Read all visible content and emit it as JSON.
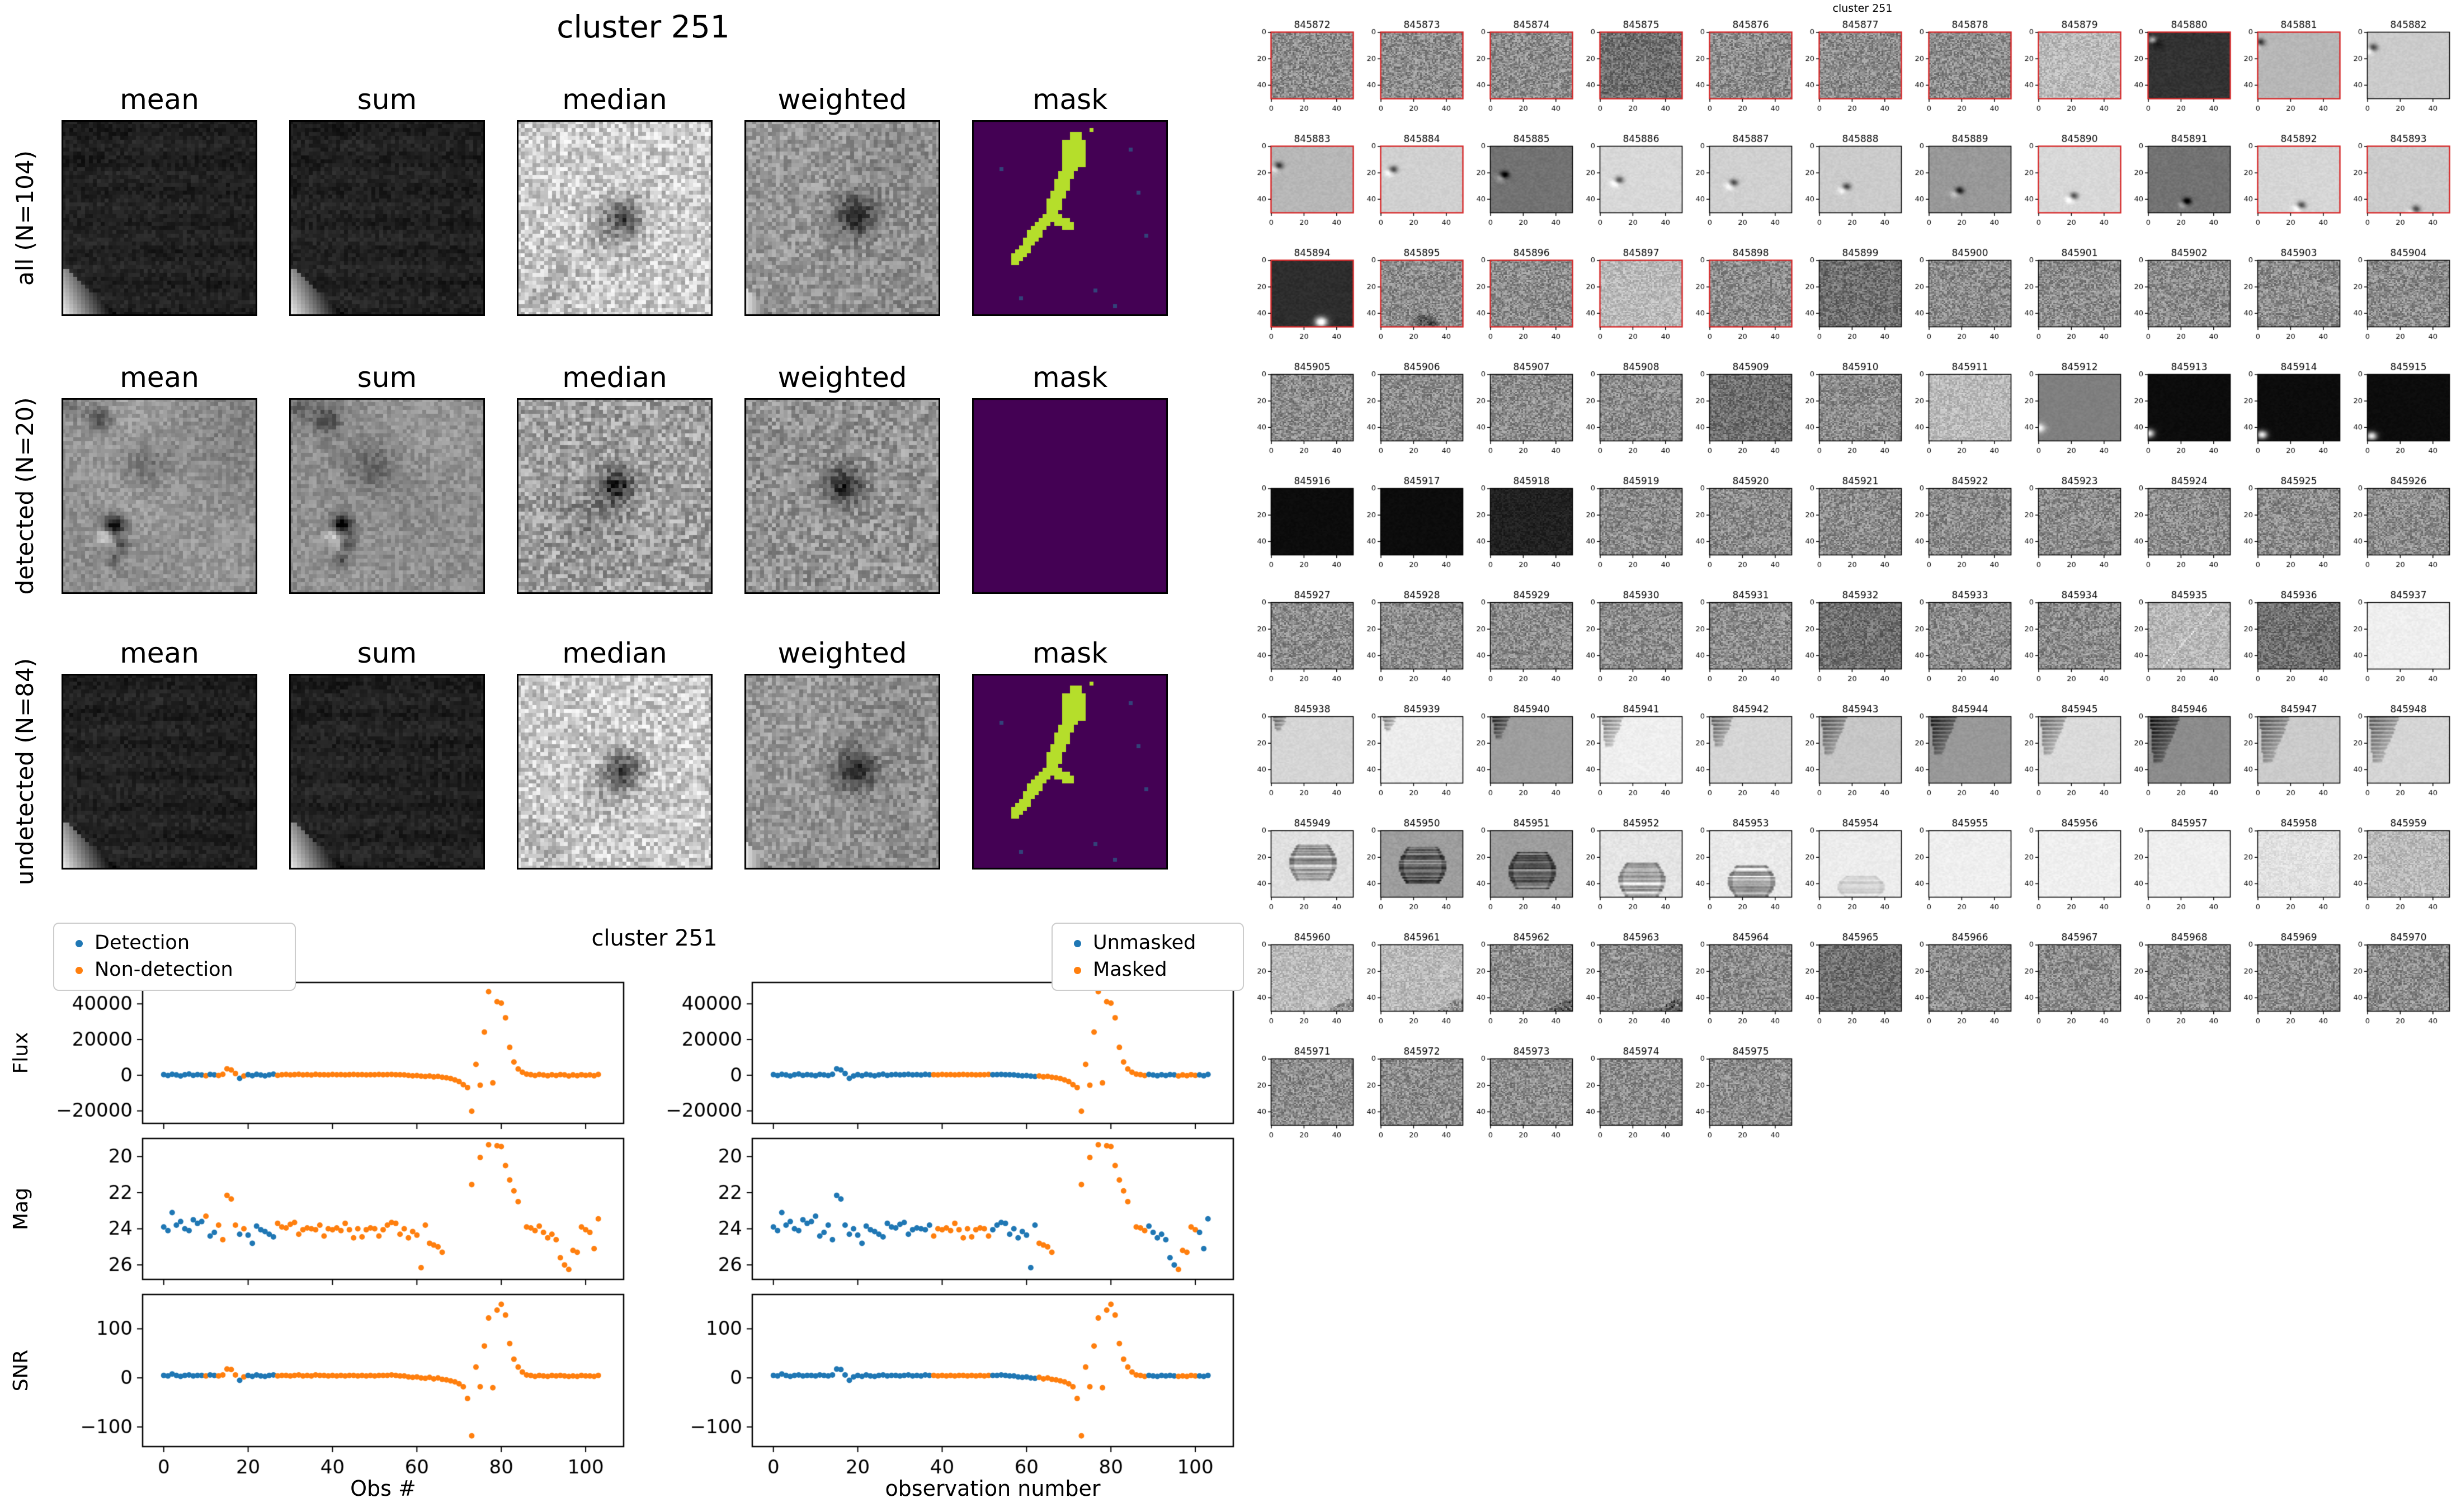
{
  "colors": {
    "detection": "#1f77b4",
    "non_detection": "#ff7f0e",
    "unmasked": "#1f77b4",
    "masked": "#ff7f0e",
    "detected_border": "#d62728",
    "tile_border": "#000000",
    "mask_background": "#440154",
    "mask_foreground": "#b5de2b",
    "mask_speck": "#33427a"
  },
  "left_figure": {
    "title": "cluster 251",
    "column_headers": [
      "mean",
      "sum",
      "median",
      "weighted",
      "mask"
    ],
    "rows": [
      {
        "label": "all (N=104)",
        "kind": "all"
      },
      {
        "label": "detected (N=20)",
        "kind": "detected"
      },
      {
        "label": "undetected (N=84)",
        "kind": "undetected"
      }
    ]
  },
  "scatter_figure": {
    "title": "cluster 251"
  },
  "chart_data": {
    "type": "scatter",
    "title": "cluster 251",
    "x_label_left": "Obs #",
    "x_label_right": "observation number",
    "legend_left": [
      "Detection",
      "Non-detection"
    ],
    "legend_right": [
      "Unmasked",
      "Masked"
    ],
    "n_obs": 104,
    "x_range": [
      0,
      103
    ],
    "xlim": [
      -5,
      109
    ],
    "xticks": [
      0,
      20,
      40,
      60,
      80,
      100
    ],
    "panels": [
      {
        "ylabel": "Flux",
        "yticks": [
          40000,
          20000,
          0,
          -20000
        ],
        "ylim_top": 52000,
        "ylim_bottom": -27000
      },
      {
        "ylabel": "Mag",
        "yticks": [
          20,
          22,
          24,
          26
        ],
        "ylim_top": 19.0,
        "ylim_bottom": 26.8
      },
      {
        "ylabel": "SNR",
        "yticks": [
          100,
          0,
          -100
        ],
        "ylim_top": 170,
        "ylim_bottom": -140
      }
    ],
    "flux": [
      350,
      -180,
      520,
      160,
      -420,
      260,
      640,
      -90,
      370,
      120,
      -310,
      460,
      210,
      -160,
      530,
      3600,
      2950,
      950,
      -1750,
      -420,
      320,
      -260,
      470,
      110,
      -340,
      230,
      560,
      -120,
      260,
      410,
      170,
      320,
      510,
      220,
      360,
      130,
      470,
      270,
      310,
      170,
      420,
      260,
      370,
      210,
      320,
      410,
      260,
      360,
      220,
      310,
      270,
      420,
      310,
      370,
      460,
      310,
      260,
      210,
      -120,
      -320,
      -210,
      -520,
      -720,
      -430,
      -930,
      -640,
      -1150,
      -1450,
      -1850,
      -2600,
      -3600,
      -5300,
      -6900,
      -20200,
      6100,
      -5600,
      24200,
      46800,
      -4300,
      41200,
      40400,
      32200,
      15600,
      7400,
      3500,
      1700,
      620,
      320,
      -210,
      420,
      120,
      -310,
      260,
      -160,
      360,
      210,
      -420,
      160,
      -260,
      310,
      -110,
      220,
      -310,
      420
    ],
    "mag": [
      23.9,
      24.1,
      23.1,
      23.8,
      23.6,
      24.0,
      24.1,
      23.5,
      23.7,
      23.6,
      23.3,
      24.4,
      24.2,
      23.8,
      24.6,
      22.15,
      22.35,
      23.8,
      24.3,
      24.0,
      24.35,
      24.8,
      23.85,
      24.05,
      24.15,
      24.3,
      24.45,
      23.7,
      23.9,
      23.95,
      23.75,
      23.65,
      24.3,
      24.05,
      23.95,
      24.0,
      24.05,
      23.8,
      24.4,
      24.0,
      24.05,
      23.95,
      24.1,
      23.7,
      24.05,
      24.5,
      24.0,
      24.45,
      24.05,
      23.95,
      24.0,
      24.4,
      24.05,
      23.8,
      23.65,
      23.7,
      24.3,
      24.0,
      24.5,
      24.15,
      24.35,
      26.15,
      23.8,
      24.8,
      24.9,
      25.0,
      25.3,
      null,
      null,
      null,
      null,
      null,
      null,
      21.55,
      null,
      20.05,
      null,
      19.35,
      null,
      19.4,
      19.45,
      20.5,
      21.3,
      21.9,
      22.5,
      null,
      23.9,
      23.95,
      24.1,
      23.85,
      24.2,
      24.5,
      24.3,
      24.6,
      25.6,
      26.0,
      26.25,
      25.2,
      25.3,
      23.9,
      24.05,
      24.2,
      25.1,
      23.45
    ],
    "snr": [
      5,
      4,
      8,
      5,
      3,
      5,
      6,
      4,
      5,
      5,
      4,
      6,
      5,
      4,
      6,
      18,
      17,
      6,
      -5,
      2,
      5,
      3,
      6,
      4,
      3,
      5,
      6,
      4,
      5,
      5,
      4,
      5,
      6,
      4,
      5,
      4,
      6,
      5,
      5,
      4,
      5,
      4,
      5,
      4,
      5,
      5,
      4,
      5,
      4,
      5,
      4,
      5,
      5,
      5,
      6,
      5,
      4,
      4,
      2,
      1,
      2,
      0,
      -1,
      1,
      -2,
      0,
      -3,
      -4,
      -6,
      -8,
      -12,
      -18,
      -42,
      -118,
      22,
      -18,
      65,
      122,
      -20,
      138,
      150,
      128,
      70,
      38,
      22,
      12,
      6,
      5,
      3,
      5,
      4,
      3,
      5,
      4,
      5,
      4,
      3,
      4,
      3,
      5,
      4,
      4,
      3,
      5
    ],
    "detected_indices": [
      0,
      1,
      2,
      3,
      4,
      5,
      6,
      7,
      8,
      9,
      11,
      12,
      18,
      20,
      21,
      22,
      23,
      24,
      25,
      26
    ],
    "masked_indices": [
      38,
      39,
      40,
      41,
      42,
      43,
      44,
      45,
      46,
      47,
      48,
      49,
      50,
      51,
      63,
      64,
      65,
      66,
      67,
      68,
      69,
      70,
      71,
      72,
      73,
      74,
      75,
      76,
      77,
      78,
      79,
      80,
      81,
      82,
      83,
      84,
      85,
      86,
      87,
      88,
      96,
      97,
      98,
      99,
      100
    ]
  },
  "thumbnails": {
    "suptitle": "cluster 251",
    "xticks": [
      0,
      20,
      40
    ],
    "yticks": [
      0,
      20,
      40
    ],
    "tiles": [
      {
        "id": 845872,
        "detected": true,
        "variant": "noise"
      },
      {
        "id": 845873,
        "detected": true,
        "variant": "noise"
      },
      {
        "id": 845874,
        "detected": true,
        "variant": "noise"
      },
      {
        "id": 845875,
        "detected": true,
        "variant": "noise-dark"
      },
      {
        "id": 845876,
        "detected": true,
        "variant": "noise"
      },
      {
        "id": 845877,
        "detected": true,
        "variant": "noise"
      },
      {
        "id": 845878,
        "detected": true,
        "variant": "noise"
      },
      {
        "id": 845879,
        "detected": true,
        "variant": "noise-light"
      },
      {
        "id": 845880,
        "detected": true,
        "variant": "dark",
        "dot": [
          2,
          5
        ]
      },
      {
        "id": 845881,
        "detected": true,
        "variant": "psf",
        "dot": [
          1,
          7
        ],
        "bg": 0.72
      },
      {
        "id": 845882,
        "detected": false,
        "variant": "psf",
        "dot": [
          3,
          11
        ],
        "bg": 0.8
      },
      {
        "id": 845883,
        "detected": true,
        "variant": "psf",
        "dot": [
          4,
          14
        ],
        "bg": 0.72
      },
      {
        "id": 845884,
        "detected": true,
        "variant": "psf",
        "dot": [
          7,
          17
        ],
        "bg": 0.82
      },
      {
        "id": 845885,
        "detected": false,
        "variant": "psf-dark",
        "dot": [
          8,
          21
        ]
      },
      {
        "id": 845886,
        "detected": false,
        "variant": "psf",
        "dot": [
          11,
          25
        ],
        "bg": 0.85
      },
      {
        "id": 845887,
        "detected": false,
        "variant": "psf",
        "dot": [
          14,
          27
        ],
        "bg": 0.82
      },
      {
        "id": 845888,
        "detected": false,
        "variant": "psf",
        "dot": [
          16,
          30
        ],
        "bg": 0.8
      },
      {
        "id": 845889,
        "detected": false,
        "variant": "psf-mid",
        "dot": [
          18,
          33
        ]
      },
      {
        "id": 845890,
        "detected": true,
        "variant": "psf",
        "dot": [
          21,
          37
        ],
        "bg": 0.85
      },
      {
        "id": 845891,
        "detected": false,
        "variant": "psf-dark",
        "dot": [
          23,
          41
        ]
      },
      {
        "id": 845892,
        "detected": true,
        "variant": "psf",
        "dot": [
          26,
          44
        ],
        "bg": 0.84
      },
      {
        "id": 845893,
        "detected": true,
        "variant": "psf",
        "dot": [
          29,
          47
        ],
        "bg": 0.8
      },
      {
        "id": 845894,
        "detected": true,
        "variant": "dark-blob",
        "dot": [
          30,
          46
        ]
      },
      {
        "id": 845895,
        "detected": true,
        "variant": "noise",
        "smudge": true
      },
      {
        "id": 845896,
        "detected": true,
        "variant": "noise"
      },
      {
        "id": 845897,
        "detected": true,
        "variant": "noise-light"
      },
      {
        "id": 845898,
        "detected": true,
        "variant": "noise"
      },
      {
        "id": 845899,
        "detected": false,
        "variant": "noise-dark"
      },
      {
        "id": 845900,
        "detected": false,
        "variant": "noise"
      },
      {
        "id": 845901,
        "detected": false,
        "variant": "noise"
      },
      {
        "id": 845902,
        "detected": false,
        "variant": "noise"
      },
      {
        "id": 845903,
        "detected": false,
        "variant": "noise"
      },
      {
        "id": 845904,
        "detected": false,
        "variant": "noise"
      },
      {
        "id": 845905,
        "detected": false,
        "variant": "noise"
      },
      {
        "id": 845906,
        "detected": false,
        "variant": "noise"
      },
      {
        "id": 845907,
        "detected": false,
        "variant": "noise"
      },
      {
        "id": 845908,
        "detected": false,
        "variant": "noise"
      },
      {
        "id": 845909,
        "detected": false,
        "variant": "noise-dark"
      },
      {
        "id": 845910,
        "detected": false,
        "variant": "noise"
      },
      {
        "id": 845911,
        "detected": false,
        "variant": "noise-light"
      },
      {
        "id": 845912,
        "detected": false,
        "variant": "gray-smooth",
        "dot": [
          0,
          40
        ]
      },
      {
        "id": 845913,
        "detected": false,
        "variant": "black",
        "dot": [
          0,
          44
        ]
      },
      {
        "id": 845914,
        "detected": false,
        "variant": "black",
        "dot": [
          2,
          45
        ]
      },
      {
        "id": 845915,
        "detected": false,
        "variant": "black",
        "dot": [
          2,
          46
        ]
      },
      {
        "id": 845916,
        "detected": false,
        "variant": "black"
      },
      {
        "id": 845917,
        "detected": false,
        "variant": "black"
      },
      {
        "id": 845918,
        "detected": false,
        "variant": "black-noise"
      },
      {
        "id": 845919,
        "detected": false,
        "variant": "noise"
      },
      {
        "id": 845920,
        "detected": false,
        "variant": "noise"
      },
      {
        "id": 845921,
        "detected": false,
        "variant": "noise"
      },
      {
        "id": 845922,
        "detected": false,
        "variant": "noise"
      },
      {
        "id": 845923,
        "detected": false,
        "variant": "noise"
      },
      {
        "id": 845924,
        "detected": false,
        "variant": "noise"
      },
      {
        "id": 845925,
        "detected": false,
        "variant": "noise"
      },
      {
        "id": 845926,
        "detected": false,
        "variant": "noise"
      },
      {
        "id": 845927,
        "detected": false,
        "variant": "noise"
      },
      {
        "id": 845928,
        "detected": false,
        "variant": "noise"
      },
      {
        "id": 845929,
        "detected": false,
        "variant": "noise"
      },
      {
        "id": 845930,
        "detected": false,
        "variant": "noise"
      },
      {
        "id": 845931,
        "detected": false,
        "variant": "noise"
      },
      {
        "id": 845932,
        "detected": false,
        "variant": "noise-dark"
      },
      {
        "id": 845933,
        "detected": false,
        "variant": "noise"
      },
      {
        "id": 845934,
        "detected": false,
        "variant": "noise"
      },
      {
        "id": 845935,
        "detected": false,
        "variant": "noise-line"
      },
      {
        "id": 845936,
        "detected": false,
        "variant": "noise-dark"
      },
      {
        "id": 845937,
        "detected": false,
        "variant": "white"
      },
      {
        "id": 845938,
        "detected": false,
        "variant": "streak",
        "sz": 1,
        "bg": 0.84
      },
      {
        "id": 845939,
        "detected": false,
        "variant": "streak",
        "sz": 1,
        "bg": 0.93
      },
      {
        "id": 845940,
        "detected": false,
        "variant": "streak",
        "sz": 2,
        "bg": 0.62
      },
      {
        "id": 845941,
        "detected": false,
        "variant": "streak",
        "sz": 3,
        "bg": 0.94
      },
      {
        "id": 845942,
        "detected": false,
        "variant": "streak",
        "sz": 3,
        "bg": 0.84
      },
      {
        "id": 845943,
        "detected": false,
        "variant": "streak",
        "sz": 4,
        "bg": 0.78
      },
      {
        "id": 845944,
        "detected": false,
        "variant": "streak",
        "sz": 4,
        "bg": 0.6
      },
      {
        "id": 845945,
        "detected": false,
        "variant": "streak",
        "sz": 4,
        "bg": 0.86
      },
      {
        "id": 845946,
        "detected": false,
        "variant": "streak",
        "sz": 5,
        "bg": 0.55
      },
      {
        "id": 845947,
        "detected": false,
        "variant": "streak",
        "sz": 5,
        "bg": 0.8
      },
      {
        "id": 845948,
        "detected": false,
        "variant": "streak",
        "sz": 5,
        "bg": 0.84
      },
      {
        "id": 845949,
        "detected": false,
        "variant": "ladder",
        "band": [
          10,
          38
        ],
        "bg": 0.88
      },
      {
        "id": 845950,
        "detected": false,
        "variant": "ladder",
        "band": [
          12,
          40
        ],
        "bg": 0.62
      },
      {
        "id": 845951,
        "detected": false,
        "variant": "ladder",
        "band": [
          16,
          44
        ],
        "bg": 0.62
      },
      {
        "id": 845952,
        "detected": false,
        "variant": "ladder",
        "band": [
          24,
          50
        ],
        "bg": 0.9
      },
      {
        "id": 845953,
        "detected": false,
        "variant": "ladder",
        "band": [
          26,
          50
        ],
        "bg": 0.92
      },
      {
        "id": 845954,
        "detected": false,
        "variant": "ladder-faint",
        "band": [
          34,
          50
        ],
        "bg": 0.93
      },
      {
        "id": 845955,
        "detected": false,
        "variant": "white"
      },
      {
        "id": 845956,
        "detected": false,
        "variant": "white"
      },
      {
        "id": 845957,
        "detected": false,
        "variant": "white"
      },
      {
        "id": 845958,
        "detected": false,
        "variant": "white-noise"
      },
      {
        "id": 845959,
        "detected": false,
        "variant": "noise-light"
      },
      {
        "id": 845960,
        "detected": false,
        "variant": "noise-light",
        "corner": true
      },
      {
        "id": 845961,
        "detected": false,
        "variant": "noise-light",
        "corner": true
      },
      {
        "id": 845962,
        "detected": false,
        "variant": "noise",
        "corner": true
      },
      {
        "id": 845963,
        "detected": false,
        "variant": "noise",
        "corner": true
      },
      {
        "id": 845964,
        "detected": false,
        "variant": "noise"
      },
      {
        "id": 845965,
        "detected": false,
        "variant": "noise-dark"
      },
      {
        "id": 845966,
        "detected": false,
        "variant": "noise"
      },
      {
        "id": 845967,
        "detected": false,
        "variant": "noise"
      },
      {
        "id": 845968,
        "detected": false,
        "variant": "noise"
      },
      {
        "id": 845969,
        "detected": false,
        "variant": "noise"
      },
      {
        "id": 845970,
        "detected": false,
        "variant": "noise"
      },
      {
        "id": 845971,
        "detected": false,
        "variant": "noise"
      },
      {
        "id": 845972,
        "detected": false,
        "variant": "noise"
      },
      {
        "id": 845973,
        "detected": false,
        "variant": "noise"
      },
      {
        "id": 845974,
        "detected": false,
        "variant": "noise"
      },
      {
        "id": 845975,
        "detected": false,
        "variant": "noise"
      }
    ]
  }
}
